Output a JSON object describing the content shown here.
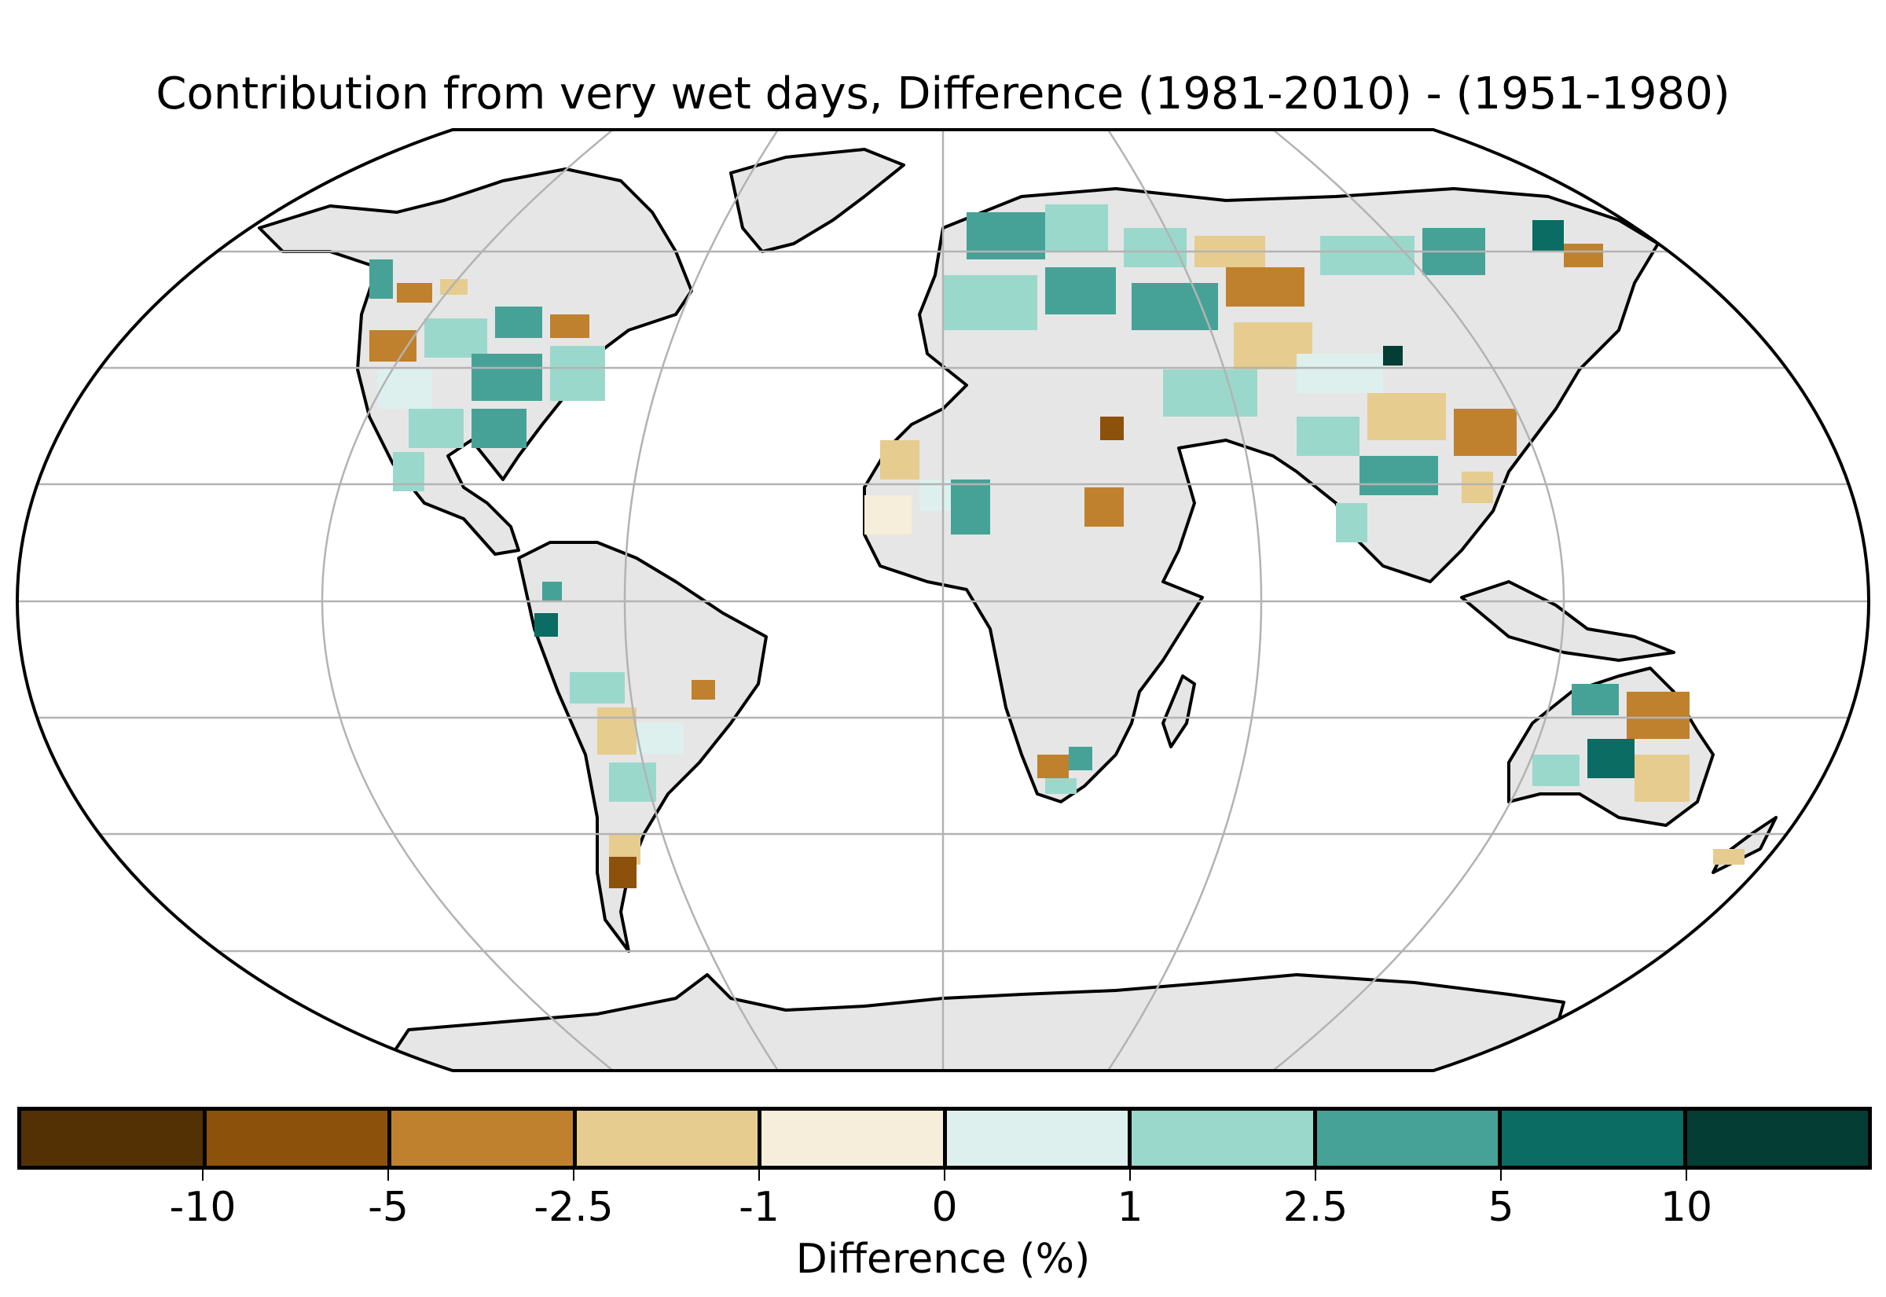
{
  "title": "Contribution from very wet days, Difference (1981-2010) - (1951-1980)",
  "map": {
    "projection": "Robinson",
    "land_color": "#e6e6e6",
    "ocean_color": "#ffffff",
    "coastline_color": "#000000",
    "graticule_color": "#b3b3b3"
  },
  "colorbar": {
    "title": "Difference (%)",
    "tick_labels": [
      "-10",
      "-5",
      "-2.5",
      "-1",
      "0",
      "1",
      "2.5",
      "5",
      "10"
    ],
    "colors": [
      "#543005",
      "#8c510a",
      "#bf812d",
      "#e6cc8e",
      "#f6eedb",
      "#ddf0ed",
      "#9bd8cc",
      "#46a296",
      "#0a6c63",
      "#043d33"
    ]
  },
  "chart_data": {
    "type": "heatmap",
    "title": "Contribution from very wet days, Difference (1981-2010) - (1951-1980)",
    "legend_title": "Difference (%)",
    "bins": [
      "< -10",
      "-10 to -5",
      "-5 to -2.5",
      "-2.5 to -1",
      "-1 to 0",
      "0 to 1",
      "1 to 2.5",
      "2.5 to 5",
      "5 to 10",
      "> 10"
    ],
    "grid": true
  }
}
